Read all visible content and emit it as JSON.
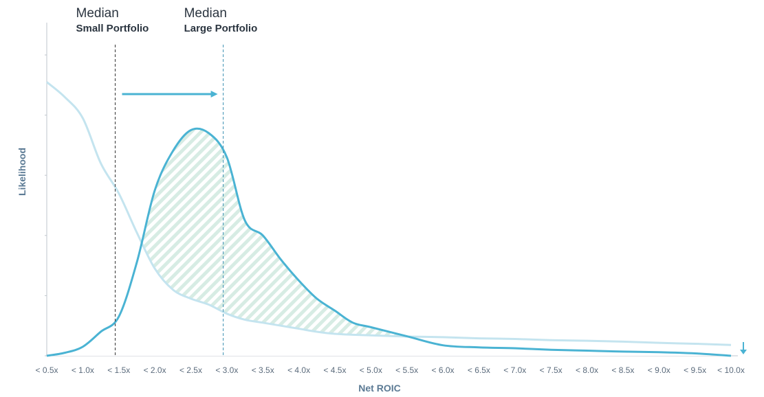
{
  "colors": {
    "small_series": "#c4e4ef",
    "large_series": "#4ab3d3",
    "hatch": "#d7ece4",
    "axis": "#bfc6cc",
    "median_small_line": "#333333",
    "median_large_line": "#3a8fb1",
    "arrow": "#4ab3d3"
  },
  "chart_data": {
    "type": "line",
    "xlabel": "Net ROIC",
    "ylabel": "Likelihood",
    "categories": [
      "< 0.5x",
      "< 1.0x",
      "< 1.5x",
      "< 2.0x",
      "< 2.5x",
      "< 3.0x",
      "< 3.5x",
      "< 4.0x",
      "< 4.5x",
      "< 5.0x",
      "< 5.5x",
      "< 6.0x",
      "< 6.5x",
      "< 7.0x",
      "< 7.5x",
      "< 8.0x",
      "< 8.5x",
      "< 9.0x",
      "< 9.5x",
      "< 10.0x"
    ],
    "x": [
      0.5,
      0.75,
      1.0,
      1.25,
      1.5,
      1.75,
      2.0,
      2.25,
      2.5,
      2.75,
      3.0,
      3.25,
      3.5,
      3.75,
      4.0,
      4.25,
      4.5,
      4.75,
      5.0,
      5.5,
      6.0,
      6.5,
      7.0,
      7.5,
      8.0,
      8.5,
      9.0,
      9.5,
      10.0
    ],
    "series": [
      {
        "key": "small",
        "values": [
          0.91,
          0.86,
          0.79,
          0.64,
          0.54,
          0.41,
          0.29,
          0.22,
          0.19,
          0.17,
          0.14,
          0.12,
          0.11,
          0.1,
          0.09,
          0.08,
          0.073,
          0.07,
          0.068,
          0.064,
          0.062,
          0.058,
          0.056,
          0.052,
          0.05,
          0.047,
          0.043,
          0.04,
          0.036
        ]
      },
      {
        "key": "large",
        "values": [
          0.0,
          0.01,
          0.03,
          0.08,
          0.13,
          0.31,
          0.55,
          0.68,
          0.75,
          0.74,
          0.66,
          0.45,
          0.4,
          0.32,
          0.25,
          0.19,
          0.15,
          0.11,
          0.095,
          0.065,
          0.035,
          0.028,
          0.025,
          0.02,
          0.017,
          0.014,
          0.012,
          0.008,
          0.0
        ]
      }
    ],
    "medians": [
      {
        "x": 1.45,
        "title": "Median",
        "label": "Small Portfolio"
      },
      {
        "x": 2.95,
        "title": "Median",
        "label": "Large Portfolio"
      }
    ],
    "xlim": [
      0.5,
      10.0
    ],
    "ylim": [
      0,
      1
    ],
    "y_ticks": [
      0,
      0.2,
      0.4,
      0.6,
      0.8,
      1.0
    ],
    "shaded_region": "between series where large > small",
    "arrow_direction_right": true,
    "down_arrow_at_end": true,
    "legend": "none",
    "grid": false
  }
}
